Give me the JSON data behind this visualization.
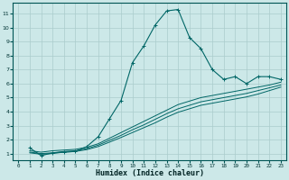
{
  "title": "",
  "xlabel": "Humidex (Indice chaleur)",
  "ylabel": "",
  "bg_color": "#cce8e8",
  "grid_color": "#aacccc",
  "line_color": "#006666",
  "xlim": [
    -0.5,
    23.5
  ],
  "ylim": [
    0.5,
    11.8
  ],
  "xticks": [
    0,
    1,
    2,
    3,
    4,
    5,
    6,
    7,
    8,
    9,
    10,
    11,
    12,
    13,
    14,
    15,
    16,
    17,
    18,
    19,
    20,
    21,
    22,
    23
  ],
  "yticks": [
    1,
    2,
    3,
    4,
    5,
    6,
    7,
    8,
    9,
    10,
    11
  ],
  "lines": [
    {
      "x": [
        1,
        2,
        3,
        4,
        5,
        6,
        7,
        8,
        9,
        10,
        11,
        12,
        13,
        14,
        15,
        16,
        17,
        18,
        19,
        20,
        21,
        22,
        23
      ],
      "y": [
        1.4,
        0.85,
        1.05,
        1.1,
        1.15,
        1.5,
        2.2,
        3.5,
        4.8,
        7.5,
        8.7,
        10.2,
        11.2,
        11.3,
        9.3,
        8.5,
        7.0,
        6.3,
        6.5,
        6.0,
        6.5,
        6.5,
        6.3
      ],
      "marker": true
    },
    {
      "x": [
        1,
        2,
        3,
        4,
        5,
        6,
        7,
        8,
        9,
        10,
        11,
        12,
        13,
        14,
        15,
        16,
        17,
        18,
        19,
        20,
        21,
        22,
        23
      ],
      "y": [
        1.2,
        1.1,
        1.2,
        1.25,
        1.3,
        1.45,
        1.7,
        2.1,
        2.5,
        2.9,
        3.3,
        3.7,
        4.1,
        4.5,
        4.75,
        5.0,
        5.15,
        5.3,
        5.45,
        5.6,
        5.75,
        5.9,
        6.1
      ],
      "marker": false
    },
    {
      "x": [
        1,
        2,
        3,
        4,
        5,
        6,
        7,
        8,
        9,
        10,
        11,
        12,
        13,
        14,
        15,
        16,
        17,
        18,
        19,
        20,
        21,
        22,
        23
      ],
      "y": [
        1.1,
        1.0,
        1.05,
        1.15,
        1.2,
        1.35,
        1.6,
        1.95,
        2.3,
        2.7,
        3.05,
        3.45,
        3.85,
        4.2,
        4.45,
        4.7,
        4.85,
        5.0,
        5.15,
        5.3,
        5.5,
        5.7,
        5.9
      ],
      "marker": false
    },
    {
      "x": [
        1,
        2,
        3,
        4,
        5,
        6,
        7,
        8,
        9,
        10,
        11,
        12,
        13,
        14,
        15,
        16,
        17,
        18,
        19,
        20,
        21,
        22,
        23
      ],
      "y": [
        1.05,
        0.95,
        1.0,
        1.1,
        1.15,
        1.28,
        1.5,
        1.82,
        2.15,
        2.5,
        2.85,
        3.2,
        3.6,
        3.95,
        4.2,
        4.45,
        4.6,
        4.75,
        4.9,
        5.05,
        5.25,
        5.5,
        5.75
      ],
      "marker": false
    }
  ]
}
